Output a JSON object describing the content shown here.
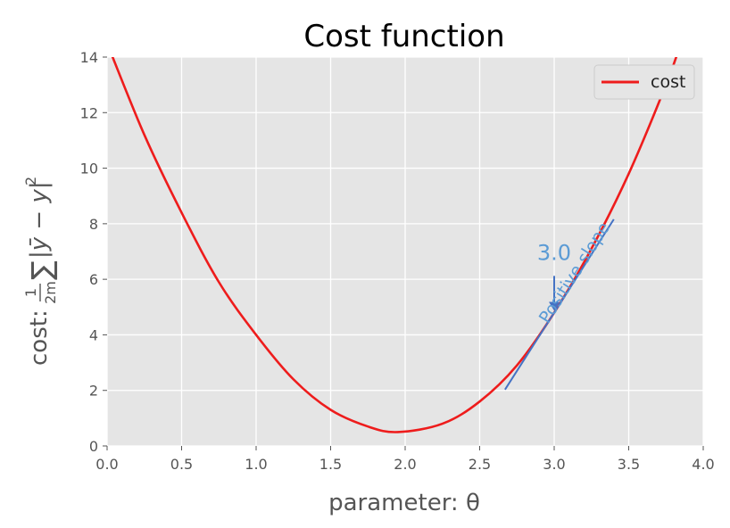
{
  "chart_data": {
    "type": "line",
    "title": "Cost function",
    "xlabel": "parameter: θ",
    "ylabel": "cost: 1/(2m) ∑|ȳ − y|²",
    "ylabel_prefix": "cost:",
    "ylabel_frac_num": "1",
    "ylabel_frac_den": "2m",
    "ylabel_sum": "∑",
    "ylabel_expr": "|ȳ − y|",
    "ylabel_sup": "2",
    "xlim": [
      0.0,
      4.0
    ],
    "ylim": [
      0,
      14
    ],
    "xticks": [
      "0.0",
      "0.5",
      "1.0",
      "1.5",
      "2.0",
      "2.5",
      "3.0",
      "3.5",
      "4.0"
    ],
    "yticks": [
      "0",
      "2",
      "4",
      "6",
      "8",
      "10",
      "12",
      "14"
    ],
    "grid": true,
    "legend": {
      "position": "top-right",
      "entries": [
        "cost"
      ]
    },
    "series": [
      {
        "name": "cost",
        "color": "#ee1c1c",
        "x": [
          0.0,
          0.25,
          0.5,
          0.75,
          1.0,
          1.25,
          1.5,
          1.75,
          1.95,
          2.25,
          2.5,
          2.75,
          3.0,
          3.25,
          3.5,
          3.75,
          3.85
        ],
        "y": [
          14.5,
          11.2,
          8.4,
          5.9,
          4.0,
          2.4,
          1.3,
          0.7,
          0.5,
          0.8,
          1.6,
          2.9,
          4.8,
          7.1,
          9.8,
          13.0,
          14.5
        ]
      }
    ],
    "annotations": [
      {
        "text": "3.0",
        "x": 3.0,
        "y": 6.7,
        "color": "#5b9bd5"
      },
      {
        "text": "Positive slope",
        "color": "#4472c4"
      }
    ],
    "tangent": {
      "at_x": 3.0,
      "x_from": 2.67,
      "x_to": 3.4,
      "color": "#4472c4"
    }
  }
}
